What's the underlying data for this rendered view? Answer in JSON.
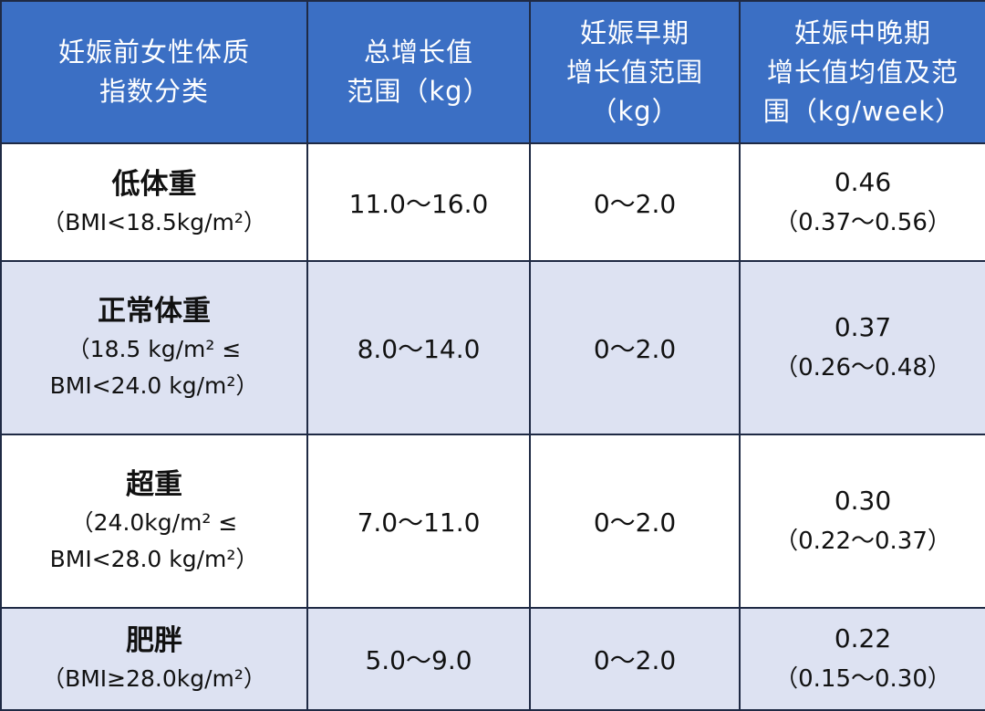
{
  "colors": {
    "header_bg": "#3b6fc4",
    "header_text": "#ffffff",
    "row_light": "#ffffff",
    "row_tint": "#dde2f2",
    "grid_line": "#1f2a44"
  },
  "header": {
    "col1": [
      "妊娠前女性体质",
      "指数分类"
    ],
    "col2": [
      "总增长值",
      "范围（kg）"
    ],
    "col3": [
      "妊娠早期",
      "增长值范围",
      "（kg）"
    ],
    "col4": [
      "妊娠中晚期",
      "增长值均值及范",
      "围（kg/week）"
    ]
  },
  "rows": [
    {
      "category": "低体重",
      "bmi_lines": [
        "（BMI<18.5kg/m²）"
      ],
      "total_range": "11.0～16.0",
      "early_range": "0～2.0",
      "mid_late_mean": "0.46",
      "mid_late_range": "（0.37～0.56）"
    },
    {
      "category": "正常体重",
      "bmi_lines": [
        "（18.5 kg/m² ≤",
        "BMI<24.0 kg/m²）"
      ],
      "total_range": "8.0～14.0",
      "early_range": "0～2.0",
      "mid_late_mean": "0.37",
      "mid_late_range": "（0.26～0.48）"
    },
    {
      "category": "超重",
      "bmi_lines": [
        "（24.0kg/m² ≤",
        "BMI<28.0 kg/m²）"
      ],
      "total_range": "7.0～11.0",
      "early_range": "0～2.0",
      "mid_late_mean": "0.30",
      "mid_late_range": "（0.22～0.37）"
    },
    {
      "category": "肥胖",
      "bmi_lines": [
        "（BMI≥28.0kg/m²）"
      ],
      "total_range": "5.0～9.0",
      "early_range": "0～2.0",
      "mid_late_mean": "0.22",
      "mid_late_range": "（0.15～0.30）"
    }
  ]
}
